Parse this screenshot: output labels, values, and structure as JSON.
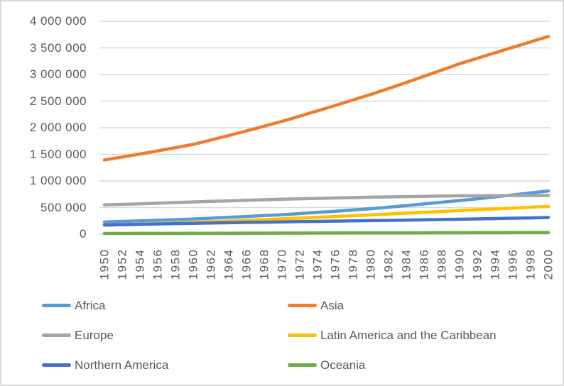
{
  "chart_data": {
    "type": "line",
    "title": "",
    "xlabel": "",
    "ylabel": "",
    "grid": "horizontal",
    "legend_position": "bottom-two-columns",
    "ylim": [
      0,
      4000000
    ],
    "y_ticks": [
      0,
      500000,
      1000000,
      1500000,
      2000000,
      2500000,
      3000000,
      3500000,
      4000000
    ],
    "y_tick_labels": [
      "0",
      "500 000",
      "1 000 000",
      "1 500 000",
      "2 000 000",
      "2 500 000",
      "3 000 000",
      "3 500 000",
      "4 000 000"
    ],
    "x": [
      1950,
      1952,
      1954,
      1956,
      1958,
      1960,
      1962,
      1964,
      1966,
      1968,
      1970,
      1972,
      1974,
      1976,
      1978,
      1980,
      1982,
      1984,
      1986,
      1988,
      1990,
      1992,
      1994,
      1996,
      1998,
      2000
    ],
    "x_tick_labels": [
      "1950",
      "1952",
      "1954",
      "1956",
      "1958",
      "1960",
      "1962",
      "1964",
      "1966",
      "1968",
      "1970",
      "1972",
      "1974",
      "1976",
      "1978",
      "1980",
      "1982",
      "1984",
      "1986",
      "1988",
      "1990",
      "1992",
      "1994",
      "1996",
      "1998",
      "2000"
    ],
    "series": [
      {
        "name": "Africa",
        "color": "#5B9BD5",
        "values": [
          228700,
          240000,
          251000,
          262000,
          273000,
          285000,
          300000,
          316000,
          332000,
          349000,
          366000,
          387000,
          409000,
          431000,
          454000,
          478000,
          507000,
          537000,
          568000,
          600000,
          632000,
          666000,
          701000,
          737000,
          774000,
          811000
        ]
      },
      {
        "name": "Asia",
        "color": "#ED7D31",
        "values": [
          1394000,
          1450000,
          1507000,
          1566000,
          1626000,
          1687000,
          1769000,
          1853000,
          1940000,
          2029000,
          2120000,
          2218000,
          2317000,
          2419000,
          2522000,
          2626000,
          2738000,
          2851000,
          2966000,
          3083000,
          3202000,
          3305000,
          3408000,
          3511000,
          3613000,
          3714000
        ]
      },
      {
        "name": "Europe",
        "color": "#A5A5A5",
        "values": [
          549000,
          560000,
          571000,
          582000,
          593000,
          605000,
          616000,
          626000,
          637000,
          647000,
          657000,
          665000,
          672000,
          680000,
          687000,
          694000,
          700000,
          705000,
          710000,
          716000,
          721000,
          722000,
          724000,
          725000,
          726000,
          727000
        ]
      },
      {
        "name": "Latin America and the Caribbean",
        "color": "#FFC000",
        "values": [
          169000,
          178000,
          188000,
          198000,
          209000,
          220000,
          233000,
          246000,
          259000,
          273000,
          287000,
          302000,
          317000,
          332000,
          347000,
          362000,
          378000,
          394000,
          410000,
          427000,
          443000,
          459000,
          475000,
          491000,
          507000,
          522000
        ]
      },
      {
        "name": "Northern America",
        "color": "#4472C4",
        "values": [
          172000,
          179000,
          186000,
          192000,
          198000,
          204000,
          210000,
          215000,
          221000,
          226000,
          231000,
          236000,
          240000,
          245000,
          249000,
          254000,
          259000,
          264000,
          269000,
          275000,
          280000,
          287000,
          293000,
          300000,
          306000,
          313000
        ]
      },
      {
        "name": "Oceania",
        "color": "#70AD47",
        "values": [
          12700,
          13300,
          14000,
          14600,
          15200,
          15800,
          16600,
          17400,
          18100,
          18900,
          19700,
          20400,
          21000,
          21700,
          22400,
          23000,
          23800,
          24600,
          25400,
          26100,
          26900,
          27700,
          28600,
          29400,
          30300,
          31200
        ]
      }
    ],
    "style": {
      "gridline_color": "#D9D9D9",
      "axis_label_color": "#595959",
      "frame_border_color": "#D9D9D9",
      "background_color": "#FFFFFF"
    }
  }
}
